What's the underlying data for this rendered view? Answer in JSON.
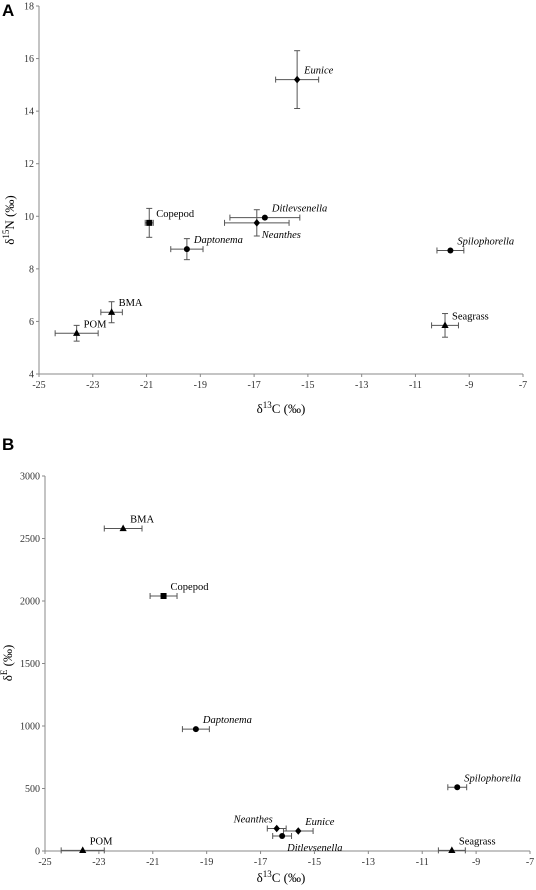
{
  "chart_data": [
    {
      "type": "scatter",
      "panel": "A",
      "xlabel_base": "δ",
      "xlabel_sup": "13",
      "xlabel_rest": "C (‰)",
      "ylabel_base": "δ",
      "ylabel_sup": "15",
      "ylabel_rest": "N (‰)",
      "xlim": [
        -25,
        -7
      ],
      "ylim": [
        4,
        18
      ],
      "xticks": [
        -25,
        -23,
        -21,
        -19,
        -17,
        -15,
        -13,
        -11,
        -9,
        -7
      ],
      "yticks": [
        4,
        6,
        8,
        10,
        12,
        14,
        16,
        18
      ],
      "points": [
        {
          "name": "Eunice",
          "italic": true,
          "x": -15.4,
          "y": 15.2,
          "xerr": 0.8,
          "yerr": 1.1,
          "marker": "diamond",
          "label_side": "right-up"
        },
        {
          "name": "Ditlevsenella",
          "italic": true,
          "x": -16.6,
          "y": 9.95,
          "xerr": 1.3,
          "yerr": 0.0,
          "marker": "circle",
          "label_side": "right-up"
        },
        {
          "name": "Neanthes",
          "italic": true,
          "x": -16.9,
          "y": 9.75,
          "xerr": 1.2,
          "yerr": 0.5,
          "marker": "diamond",
          "label_side": "right-down"
        },
        {
          "name": "Copepod",
          "italic": false,
          "x": -20.9,
          "y": 9.75,
          "xerr": 0.15,
          "yerr": 0.55,
          "marker": "square",
          "label_side": "right-up"
        },
        {
          "name": "Daptonema",
          "italic": true,
          "x": -19.5,
          "y": 8.75,
          "xerr": 0.6,
          "yerr": 0.4,
          "marker": "circle",
          "label_side": "right-up"
        },
        {
          "name": "Spilophorella",
          "italic": true,
          "x": -9.7,
          "y": 8.7,
          "xerr": 0.5,
          "yerr": 0.0,
          "marker": "circle",
          "label_side": "right-up"
        },
        {
          "name": "BMA",
          "italic": false,
          "x": -22.3,
          "y": 6.35,
          "xerr": 0.4,
          "yerr": 0.4,
          "marker": "triangle",
          "label_side": "right-up"
        },
        {
          "name": "POM",
          "italic": false,
          "x": -23.6,
          "y": 5.55,
          "xerr": 0.8,
          "yerr": 0.3,
          "marker": "triangle",
          "label_side": "right-up"
        },
        {
          "name": "Seagrass",
          "italic": false,
          "x": -9.9,
          "y": 5.85,
          "xerr": 0.5,
          "yerr": 0.45,
          "marker": "triangle",
          "label_side": "right-up"
        }
      ]
    },
    {
      "type": "scatter",
      "panel": "B",
      "xlabel_base": "δ",
      "xlabel_sup": "13",
      "xlabel_rest": "C (‰)",
      "ylabel_base": "δ",
      "ylabel_sup": "E",
      "ylabel_rest": " (‰)",
      "xlim": [
        -25,
        -7
      ],
      "ylim": [
        0,
        3000
      ],
      "xticks": [
        -25,
        -23,
        -21,
        -19,
        -17,
        -15,
        -13,
        -11,
        -9,
        -7
      ],
      "yticks": [
        0,
        500,
        1000,
        1500,
        2000,
        2500,
        3000
      ],
      "points": [
        {
          "name": "BMA",
          "italic": false,
          "x": -22.1,
          "y": 2580,
          "xerr": 0.7,
          "yerr": 0,
          "marker": "triangle",
          "label_side": "right-up"
        },
        {
          "name": "Copepod",
          "italic": false,
          "x": -20.6,
          "y": 2040,
          "xerr": 0.5,
          "yerr": 0,
          "marker": "square",
          "label_side": "right-up"
        },
        {
          "name": "Daptonema",
          "italic": true,
          "x": -19.4,
          "y": 975,
          "xerr": 0.5,
          "yerr": 0,
          "marker": "circle",
          "label_side": "right-up"
        },
        {
          "name": "Spilophorella",
          "italic": true,
          "x": -9.7,
          "y": 510,
          "xerr": 0.35,
          "yerr": 0,
          "marker": "circle",
          "label_side": "right-up"
        },
        {
          "name": "Neanthes",
          "italic": true,
          "x": -16.4,
          "y": 180,
          "xerr": 0.35,
          "yerr": 0,
          "marker": "diamond",
          "label_side": "left-up"
        },
        {
          "name": "Eunice",
          "italic": true,
          "x": -15.6,
          "y": 160,
          "xerr": 0.55,
          "yerr": 0,
          "marker": "diamond",
          "label_side": "right-up"
        },
        {
          "name": "Ditlevsenella",
          "italic": true,
          "x": -16.2,
          "y": 120,
          "xerr": 0.35,
          "yerr": 0,
          "marker": "circle",
          "label_side": "right-down"
        },
        {
          "name": "POM",
          "italic": false,
          "x": -23.6,
          "y": 5,
          "xerr": 0.8,
          "yerr": 0,
          "marker": "triangle",
          "label_side": "right-up"
        },
        {
          "name": "Seagrass",
          "italic": false,
          "x": -9.9,
          "y": 5,
          "xerr": 0.5,
          "yerr": 0,
          "marker": "triangle",
          "label_side": "right-up"
        }
      ]
    }
  ]
}
